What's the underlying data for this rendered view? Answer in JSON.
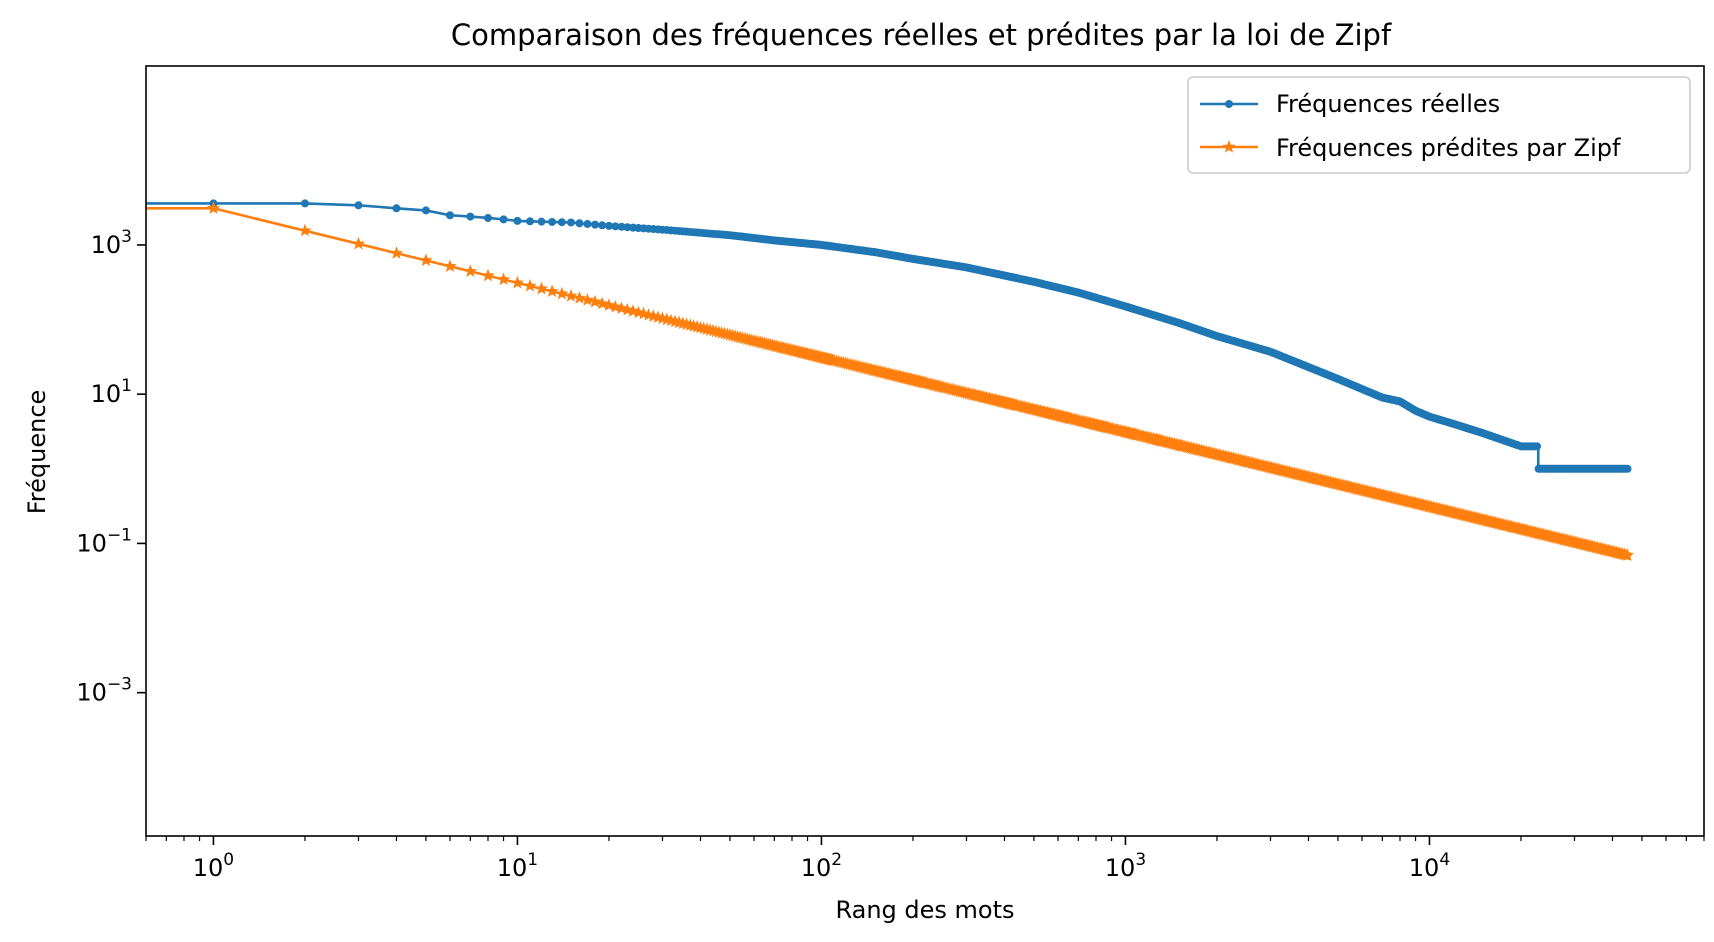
{
  "chart_data": {
    "type": "line",
    "title": "Comparaison des fréquences réelles et prédites par la loi de Zipf",
    "xlabel": "Rang des mots",
    "ylabel": "Fréquence",
    "xscale": "log",
    "yscale": "log",
    "xlim": [
      0.6,
      80000
    ],
    "ylim": [
      1.2e-05,
      250000
    ],
    "x_major_ticks": [
      {
        "value": 1,
        "base": "10",
        "exp": "0"
      },
      {
        "value": 10,
        "base": "10",
        "exp": "1"
      },
      {
        "value": 100,
        "base": "10",
        "exp": "2"
      },
      {
        "value": 1000,
        "base": "10",
        "exp": "3"
      },
      {
        "value": 10000,
        "base": "10",
        "exp": "4"
      }
    ],
    "y_major_ticks": [
      {
        "value": 1000,
        "base": "10",
        "exp": "3"
      },
      {
        "value": 10,
        "base": "10",
        "exp": "1"
      },
      {
        "value": 0.1,
        "base": "10",
        "exp": "−1"
      },
      {
        "value": 0.001,
        "base": "10",
        "exp": "−3"
      }
    ],
    "grid": false,
    "legend_position": "top-right",
    "series": [
      {
        "name": "Fréquences réelles",
        "color": "#1f77b4",
        "marker": "circle",
        "x": [
          0.6,
          1,
          2,
          3,
          4,
          5,
          6,
          7,
          8,
          9,
          10,
          12,
          15,
          20,
          30,
          50,
          70,
          100,
          150,
          200,
          300,
          500,
          700,
          1000,
          1500,
          2000,
          3000,
          5000,
          7000,
          8000,
          9000,
          10000,
          12000,
          15000,
          20000,
          22800,
          22800,
          45000
        ],
        "y": [
          3600,
          3600,
          3600,
          3400,
          3100,
          2900,
          2500,
          2400,
          2300,
          2200,
          2100,
          2050,
          2000,
          1800,
          1600,
          1350,
          1150,
          1000,
          800,
          650,
          500,
          320,
          230,
          150,
          90,
          60,
          37,
          16,
          9,
          8,
          6,
          5,
          4,
          3,
          2,
          2,
          1,
          1
        ]
      },
      {
        "name": "Fréquences prédites par Zipf",
        "color": "#ff7f0e",
        "marker": "star",
        "zipf_constant": 3100,
        "x_range": [
          1,
          45000
        ],
        "left_edge_value": 3100
      }
    ]
  }
}
